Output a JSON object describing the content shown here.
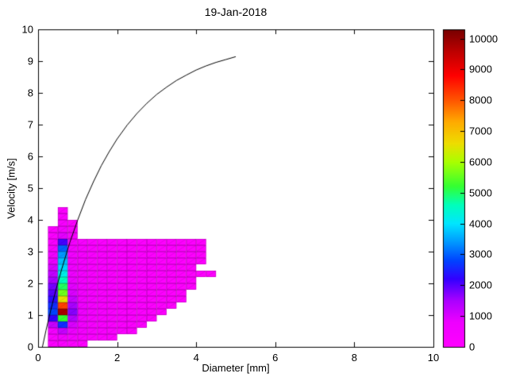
{
  "title": "19-Jan-2018",
  "xlabel": "Diameter [mm]",
  "ylabel": "Velocity [m/s]",
  "axes": {
    "xlim": [
      0,
      10
    ],
    "ylim": [
      0,
      10
    ],
    "xticks": [
      0,
      2,
      4,
      6,
      8,
      10
    ],
    "yticks": [
      0,
      1,
      2,
      3,
      4,
      5,
      6,
      7,
      8,
      9,
      10
    ]
  },
  "colorbar": {
    "min": 0,
    "max": 10300,
    "ticks": [
      0,
      1000,
      2000,
      3000,
      4000,
      5000,
      6000,
      7000,
      8000,
      9000,
      10000
    ]
  },
  "colormap": [
    [
      0,
      "#ff00ff"
    ],
    [
      800,
      "#ee00ff"
    ],
    [
      1500,
      "#aa00ff"
    ],
    [
      2200,
      "#3300ff"
    ],
    [
      2800,
      "#0044ff"
    ],
    [
      3400,
      "#0099ff"
    ],
    [
      4000,
      "#00e6ff"
    ],
    [
      4600,
      "#00ffbb"
    ],
    [
      5200,
      "#33ff33"
    ],
    [
      6000,
      "#aaff00"
    ],
    [
      6600,
      "#eedd00"
    ],
    [
      7300,
      "#ffaa00"
    ],
    [
      8000,
      "#ff5500"
    ],
    [
      8800,
      "#ff0000"
    ],
    [
      9600,
      "#bb0000"
    ],
    [
      10300,
      "#770000"
    ]
  ],
  "chart_data": {
    "type": "heatmap",
    "title": "19-Jan-2018",
    "xlabel": "Diameter [mm]",
    "ylabel": "Velocity [m/s]",
    "xlim": [
      0,
      10
    ],
    "ylim": [
      0,
      10
    ],
    "colorbar_range": [
      0,
      10300
    ],
    "cell_dx": 0.25,
    "cell_dy": 0.2,
    "x_start": 0.25,
    "y_start": 0.0,
    "counts_note": "rows bottom-to-top from v=0, cols left-to-right from d=0.25mm; counts per diameter/velocity bin",
    "counts": [
      [
        150,
        250,
        200,
        100
      ],
      [
        300,
        600,
        500,
        350,
        250,
        200,
        150
      ],
      [
        500,
        1200,
        800,
        450,
        320,
        260,
        220,
        170,
        130
      ],
      [
        1200,
        2600,
        1000,
        550,
        380,
        300,
        250,
        200,
        160,
        120
      ],
      [
        2200,
        5200,
        1400,
        650,
        420,
        330,
        270,
        215,
        175,
        140,
        110
      ],
      [
        2800,
        9800,
        1700,
        750,
        470,
        360,
        290,
        235,
        185,
        150,
        115,
        90
      ],
      [
        2600,
        8200,
        1500,
        700,
        450,
        350,
        280,
        225,
        180,
        145,
        115,
        90,
        70
      ],
      [
        2300,
        6500,
        1200,
        620,
        410,
        325,
        260,
        210,
        170,
        135,
        110,
        85,
        70,
        55
      ],
      [
        2000,
        5600,
        1000,
        560,
        380,
        305,
        245,
        200,
        160,
        130,
        105,
        82,
        67,
        55
      ],
      [
        1800,
        5000,
        900,
        510,
        355,
        285,
        235,
        190,
        155,
        125,
        100,
        80,
        65,
        52,
        45
      ],
      [
        1500,
        4600,
        820,
        480,
        340,
        275,
        225,
        182,
        148,
        120,
        96,
        77,
        62,
        50,
        42
      ],
      [
        1250,
        4200,
        740,
        450,
        320,
        260,
        215,
        175,
        142,
        115,
        92,
        74,
        60,
        48,
        40,
        34,
        28
      ],
      [
        1050,
        3900,
        680,
        425,
        305,
        248,
        205,
        168,
        136,
        110,
        89,
        71,
        57,
        46,
        38
      ],
      [
        850,
        3700,
        620,
        400,
        290,
        238,
        196,
        160,
        130,
        106,
        85,
        68,
        55,
        44,
        36,
        30
      ],
      [
        650,
        3400,
        570,
        375,
        275,
        226,
        186,
        153,
        124,
        101,
        82,
        66,
        53,
        42,
        35,
        29
      ],
      [
        450,
        3000,
        520,
        355,
        262,
        215,
        178,
        146,
        119,
        97,
        78,
        63,
        51,
        41,
        33,
        28
      ],
      [
        280,
        2100,
        470,
        335,
        248,
        205,
        170,
        140,
        114,
        92,
        75,
        61,
        49,
        39,
        32,
        27
      ],
      [
        180,
        900,
        330
      ],
      [
        120,
        550,
        220
      ],
      [
        0,
        320,
        130
      ],
      [
        0,
        220,
        0
      ],
      [
        0,
        150,
        0
      ]
    ],
    "curve": {
      "name": "terminal-velocity-curve",
      "points": [
        [
          0.11,
          0.0
        ],
        [
          0.2,
          0.52
        ],
        [
          0.3,
          1.05
        ],
        [
          0.4,
          1.55
        ],
        [
          0.5,
          2.02
        ],
        [
          0.6,
          2.46
        ],
        [
          0.8,
          3.28
        ],
        [
          1.0,
          3.99
        ],
        [
          1.2,
          4.64
        ],
        [
          1.4,
          5.2
        ],
        [
          1.6,
          5.71
        ],
        [
          1.8,
          6.15
        ],
        [
          2.0,
          6.55
        ],
        [
          2.25,
          6.98
        ],
        [
          2.5,
          7.35
        ],
        [
          2.75,
          7.67
        ],
        [
          3.0,
          7.95
        ],
        [
          3.25,
          8.18
        ],
        [
          3.5,
          8.39
        ],
        [
          3.75,
          8.56
        ],
        [
          4.0,
          8.72
        ],
        [
          4.25,
          8.85
        ],
        [
          4.5,
          8.96
        ],
        [
          4.75,
          9.05
        ],
        [
          5.0,
          9.14
        ]
      ]
    }
  }
}
